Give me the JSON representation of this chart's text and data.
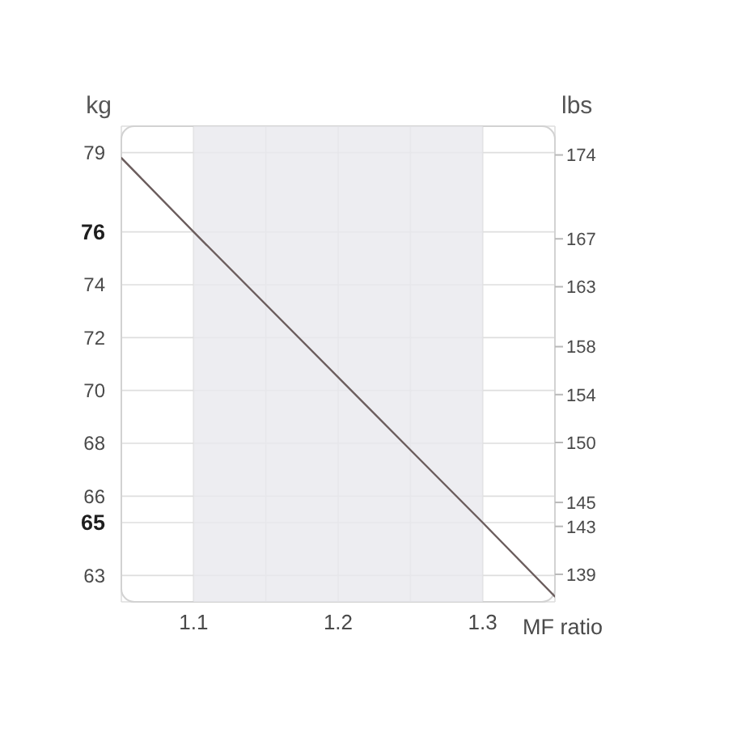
{
  "chart_data": {
    "type": "line",
    "xlabel": "MF ratio",
    "ylabel": "kg",
    "y2label": "lbs",
    "x": [
      1.05,
      1.1,
      1.3,
      1.35
    ],
    "series": [
      {
        "color": "#6b5d5d",
        "values": [
          78.8,
          76,
          65,
          62.2
        ]
      }
    ],
    "xlim": [
      1.05,
      1.35
    ],
    "xticks": [
      1.1,
      {
        "value": 1.15,
        "label": null
      },
      1.2,
      {
        "value": 1.25,
        "label": null
      },
      1.3
    ],
    "ylim": [
      62,
      80
    ],
    "yticks": [
      79,
      76,
      74,
      72,
      70,
      68,
      66,
      65,
      63
    ],
    "y2lim": [
      136.7,
      176.4
    ],
    "y2ticks": [
      174,
      167,
      163,
      158,
      154,
      150,
      145,
      143,
      139
    ],
    "bands": [
      {
        "axis": "x",
        "from": 1.1,
        "to": 1.3,
        "color": "#e8e8ee"
      }
    ],
    "grid": true,
    "marker": "none",
    "line_style": "solid"
  }
}
